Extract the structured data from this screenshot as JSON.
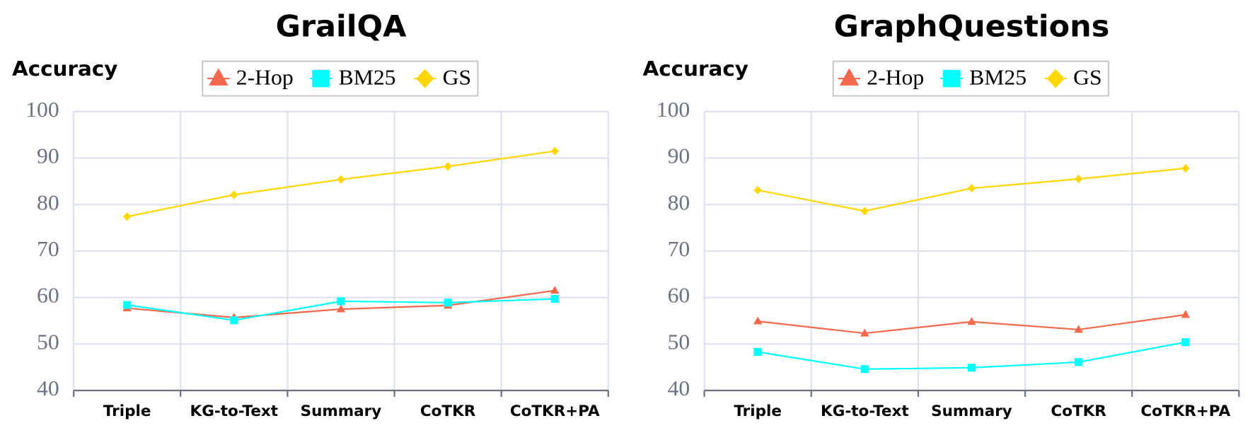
{
  "chart_data": [
    {
      "type": "line",
      "title": "GrailQA",
      "y_label": "Accuracy",
      "categories": [
        "Triple",
        "KG-to-Text",
        "Summary",
        "CoTKR",
        "CoTKR+PA"
      ],
      "series": [
        {
          "name": "2-Hop",
          "color": "#f4694c",
          "marker": "triangle",
          "values": [
            57.7,
            55.7,
            57.5,
            58.3,
            61.5
          ]
        },
        {
          "name": "BM25",
          "color": "#00ffff",
          "marker": "square",
          "values": [
            58.4,
            55.1,
            59.2,
            58.9,
            59.7
          ]
        },
        {
          "name": "GS",
          "color": "#ffd700",
          "marker": "diamond",
          "values": [
            77.4,
            82.1,
            85.4,
            88.2,
            91.5
          ]
        }
      ],
      "ylim": [
        40,
        100
      ],
      "yticks": [
        40,
        50,
        60,
        70,
        80,
        90,
        100
      ],
      "grid": true
    },
    {
      "type": "line",
      "title": "GraphQuestions",
      "y_label": "Accuracy",
      "categories": [
        "Triple",
        "KG-to-Text",
        "Summary",
        "CoTKR",
        "CoTKR+PA"
      ],
      "series": [
        {
          "name": "2-Hop",
          "color": "#f4694c",
          "marker": "triangle",
          "values": [
            54.9,
            52.3,
            54.8,
            53.1,
            56.3
          ]
        },
        {
          "name": "BM25",
          "color": "#00ffff",
          "marker": "square",
          "values": [
            48.3,
            44.6,
            44.9,
            46.1,
            50.4
          ]
        },
        {
          "name": "GS",
          "color": "#ffd700",
          "marker": "diamond",
          "values": [
            83.1,
            78.6,
            83.5,
            85.5,
            87.8
          ]
        }
      ],
      "ylim": [
        40,
        100
      ],
      "yticks": [
        40,
        50,
        60,
        70,
        80,
        90,
        100
      ],
      "grid": true
    }
  ]
}
